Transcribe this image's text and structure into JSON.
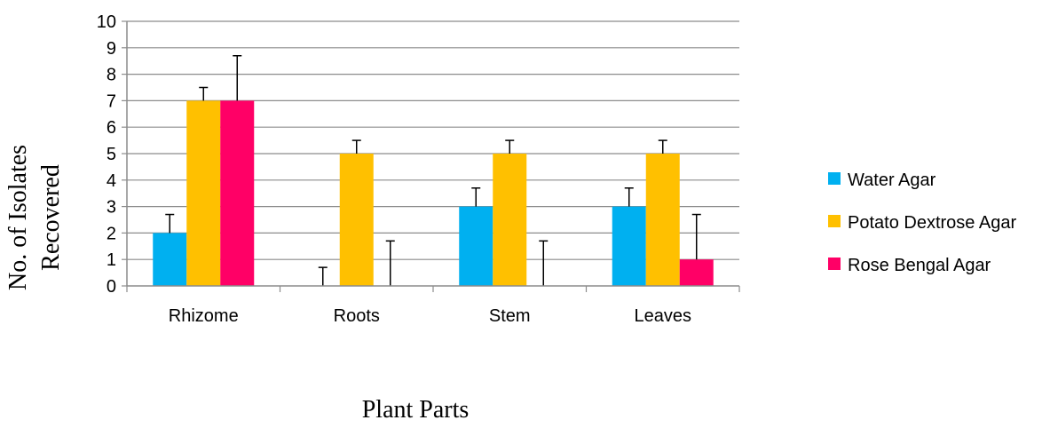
{
  "chart_data": {
    "type": "bar",
    "title": "",
    "xlabel": "Plant Parts",
    "ylabel_lines": [
      "No. of Isolates",
      "Recovered"
    ],
    "categories": [
      "Rhizome",
      "Roots",
      "Stem",
      "Leaves"
    ],
    "ylim": [
      0,
      10
    ],
    "yticks": [
      "0",
      "1",
      "2",
      "3",
      "4",
      "5",
      "6",
      "7",
      "8",
      "9",
      "10"
    ],
    "grid": true,
    "legend_position": "right",
    "series": [
      {
        "name": "Water Agar",
        "color": "#00b0f0",
        "values": [
          2,
          0,
          3,
          3
        ],
        "error": [
          0.7,
          0.7,
          0.7,
          0.7
        ]
      },
      {
        "name": "Potato Dextrose Agar",
        "color": "#ffc000",
        "values": [
          7,
          5,
          5,
          5
        ],
        "error": [
          0.5,
          0.5,
          0.5,
          0.5
        ]
      },
      {
        "name": "Rose Bengal Agar",
        "color": "#ff0066",
        "values": [
          7,
          0,
          0,
          1
        ],
        "error": [
          1.7,
          1.7,
          1.7,
          1.7
        ]
      }
    ]
  }
}
